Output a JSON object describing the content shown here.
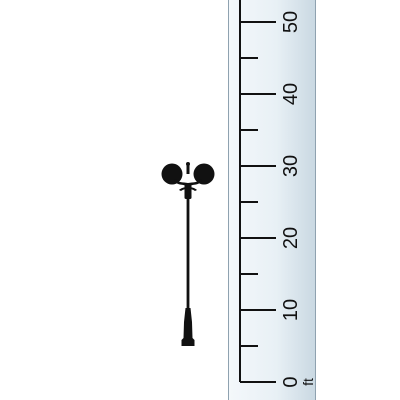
{
  "icons": {
    "lamp_post": "double-globe-lamp-post-icon"
  },
  "ruler": {
    "unit": "ft",
    "major_labels": [
      "0",
      "10",
      "20",
      "30",
      "40",
      "50"
    ],
    "major_step": 10,
    "minor_step": 5,
    "max_visible": 52
  },
  "lamp_post": {
    "height_ft": 28.5
  },
  "colors": {
    "ruler_light": "#f4f8fb",
    "ruler_dark": "#c9d8e2",
    "ruler_edge": "#8fa2b0",
    "ink": "#111111"
  }
}
